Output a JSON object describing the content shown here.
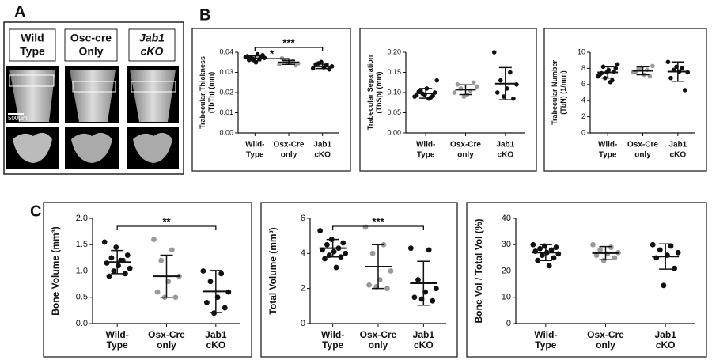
{
  "panel_labels": [
    "A",
    "B",
    "C"
  ],
  "panel_a": {
    "columns": [
      [
        "Wild",
        "Type"
      ],
      [
        "Osc-cre",
        "Only"
      ],
      [
        "Jab1",
        "cKO"
      ]
    ],
    "scale_bar": "500µm"
  },
  "chart_data": [
    {
      "type": "strip",
      "ylabel": [
        "Trabecular  Thickness",
        "(TbTh) (mm)"
      ],
      "categories": [
        [
          "Wild-",
          "Type"
        ],
        [
          "Osx-Cre",
          "only"
        ],
        [
          "Jab1",
          "cKO"
        ]
      ],
      "groups": [
        {
          "color": "#111111",
          "values": [
            0.0375,
            0.036,
            0.0385,
            0.037,
            0.0365,
            0.038,
            0.035,
            0.0372,
            0.0368,
            0.0378,
            0.0362,
            0.039
          ],
          "mean": 0.037,
          "sd": 0.0012
        },
        {
          "color": "#9a9a9a",
          "values": [
            0.034,
            0.0355,
            0.036,
            0.0345,
            0.035,
            0.037,
            0.0335,
            0.0348
          ],
          "mean": 0.035,
          "sd": 0.001,
          "significance": "*"
        },
        {
          "color": "#111111",
          "values": [
            0.032,
            0.0335,
            0.0345,
            0.033,
            0.0325,
            0.034,
            0.0315,
            0.0352
          ],
          "mean": 0.033,
          "sd": 0.0011,
          "significance": "***"
        }
      ],
      "ylim": [
        0,
        0.04
      ],
      "yticks": [
        {
          "value": 0,
          "label": "0.00"
        },
        {
          "value": 0.01,
          "label": "0.01"
        },
        {
          "value": 0.02,
          "label": "0.02"
        },
        {
          "value": 0.03,
          "label": "0.03"
        },
        {
          "value": 0.04,
          "label": "0.04"
        }
      ]
    },
    {
      "type": "strip",
      "ylabel": [
        "Trabecular  Separation",
        "(TbSp) (mm)"
      ],
      "categories": [
        [
          "Wild-",
          "Type"
        ],
        [
          "Osx-Cre",
          "only"
        ],
        [
          "Jab1",
          "cKO"
        ]
      ],
      "groups": [
        {
          "color": "#111111",
          "values": [
            0.09,
            0.095,
            0.1,
            0.105,
            0.088,
            0.093,
            0.11,
            0.13,
            0.097,
            0.092,
            0.102,
            0.085
          ],
          "mean": 0.098,
          "sd": 0.012
        },
        {
          "color": "#9a9a9a",
          "values": [
            0.1,
            0.105,
            0.11,
            0.115,
            0.095,
            0.12,
            0.125,
            0.09
          ],
          "mean": 0.107,
          "sd": 0.012
        },
        {
          "color": "#111111",
          "values": [
            0.2,
            0.15,
            0.13,
            0.12,
            0.11,
            0.1,
            0.085,
            0.09
          ],
          "mean": 0.122,
          "sd": 0.04
        }
      ],
      "ylim": [
        0,
        0.2
      ],
      "yticks": [
        {
          "value": 0,
          "label": "0.00"
        },
        {
          "value": 0.05,
          "label": "0.05"
        },
        {
          "value": 0.1,
          "label": "0.10"
        },
        {
          "value": 0.15,
          "label": "0.15"
        },
        {
          "value": 0.2,
          "label": "0.20"
        }
      ]
    },
    {
      "type": "strip",
      "ylabel": [
        "Trabecular  Number",
        "(TbN) (1/mm)"
      ],
      "categories": [
        [
          "Wild-",
          "Type"
        ],
        [
          "Osx-Cre",
          "only"
        ],
        [
          "Jab1",
          "cKO"
        ]
      ],
      "groups": [
        {
          "color": "#111111",
          "values": [
            7.0,
            7.5,
            8.0,
            8.2,
            6.5,
            7.2,
            7.8,
            8.5,
            6.8,
            7.6,
            7.4,
            6.3
          ],
          "mean": 7.5,
          "sd": 0.7
        },
        {
          "color": "#9a9a9a",
          "values": [
            7.5,
            7.8,
            8.0,
            8.3,
            7.2,
            7.6,
            7.0,
            8.1
          ],
          "mean": 7.7,
          "sd": 0.5
        },
        {
          "color": "#111111",
          "values": [
            8.8,
            8.0,
            7.8,
            7.5,
            7.6,
            6.8,
            5.3,
            8.2
          ],
          "mean": 7.6,
          "sd": 1.2
        }
      ],
      "ylim": [
        0,
        10
      ],
      "yticks": [
        0,
        2,
        4,
        6,
        8,
        10
      ]
    },
    {
      "type": "strip",
      "ylabel": [
        "Bone Volume (mm³)"
      ],
      "categories": [
        [
          "Wild-",
          "Type"
        ],
        [
          "Osx-Cre",
          "only"
        ],
        [
          "Jab1",
          "cKO"
        ]
      ],
      "groups": [
        {
          "color": "#111111",
          "values": [
            1.55,
            1.45,
            1.3,
            1.25,
            1.2,
            1.15,
            1.1,
            1.05,
            1.0,
            0.95,
            0.9,
            1.2
          ],
          "mean": 1.17,
          "sd": 0.22
        },
        {
          "color": "#9a9a9a",
          "values": [
            1.6,
            1.4,
            1.2,
            0.9,
            0.8,
            0.6,
            0.5,
            0.5
          ],
          "mean": 0.9,
          "sd": 0.4
        },
        {
          "color": "#111111",
          "values": [
            1.0,
            0.95,
            0.8,
            0.6,
            0.5,
            0.4,
            0.3,
            0.2
          ],
          "mean": 0.61,
          "sd": 0.4,
          "significance": "**"
        }
      ],
      "ylim": [
        0,
        2
      ],
      "yticks": [
        {
          "value": 0,
          "label": "0.0"
        },
        0.5,
        {
          "value": 1,
          "label": "1.0"
        },
        1.5,
        {
          "value": 2,
          "label": "2.0"
        }
      ]
    },
    {
      "type": "strip",
      "ylabel": [
        "Total Volume (mm³)"
      ],
      "categories": [
        [
          "Wild-",
          "Type"
        ],
        [
          "Osx-Cre",
          "only"
        ],
        [
          "Jab1",
          "cKO"
        ]
      ],
      "groups": [
        {
          "color": "#111111",
          "values": [
            5.3,
            4.8,
            4.6,
            4.5,
            4.3,
            4.2,
            4.1,
            4.0,
            3.9,
            3.8,
            3.7,
            3.2
          ],
          "mean": 4.3,
          "sd": 0.5
        },
        {
          "color": "#9a9a9a",
          "values": [
            5.5,
            4.5,
            4.0,
            3.0,
            2.5,
            2.2,
            2.0,
            2.1
          ],
          "mean": 3.25,
          "sd": 1.25
        },
        {
          "color": "#111111",
          "values": [
            4.3,
            4.2,
            2.5,
            2.0,
            1.8,
            1.5,
            1.3,
            1.4
          ],
          "mean": 2.3,
          "sd": 1.25,
          "significance": "***"
        }
      ],
      "ylim": [
        0,
        6
      ],
      "yticks": [
        0,
        2,
        4,
        6
      ]
    },
    {
      "type": "strip",
      "ylabel": [
        "Bone Vol / Total Vol (%)"
      ],
      "categories": [
        [
          "Wild-",
          "Type"
        ],
        [
          "Osx-Cre",
          "only"
        ],
        [
          "Jab1",
          "cKO"
        ]
      ],
      "groups": [
        {
          "color": "#111111",
          "values": [
            30,
            29.5,
            29,
            28.5,
            28,
            27.5,
            27,
            26.5,
            26,
            25,
            24,
            22
          ],
          "mean": 27,
          "sd": 3
        },
        {
          "color": "#9a9a9a",
          "values": [
            30,
            29,
            28,
            27,
            26.5,
            26,
            25,
            24
          ],
          "mean": 26.8,
          "sd": 2.5
        },
        {
          "color": "#111111",
          "values": [
            30,
            29.5,
            28,
            27,
            26,
            25,
            21,
            14.5
          ],
          "mean": 25.5,
          "sd": 4.8
        }
      ],
      "ylim": [
        0,
        40
      ],
      "yticks": [
        0,
        10,
        20,
        30,
        40
      ]
    }
  ]
}
